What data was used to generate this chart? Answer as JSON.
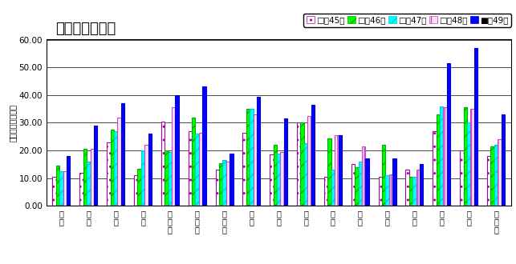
{
  "title": "インフルエンザ",
  "ylabel": "定点当たり報告数",
  "categories": [
    "野\n田",
    "柏\n市",
    "松\n戸",
    "市\n川",
    "船\n橋\n市",
    "習\n志\n野",
    "千\n葉\n市",
    "印\n旛",
    "香\n取",
    "海\n匹",
    "山\n武",
    "長\n生",
    "夷\n隣",
    "安\n房",
    "君\n津",
    "市\n原",
    "県\n全\n体"
  ],
  "ylim": [
    0,
    60
  ],
  "yticks": [
    0,
    10,
    20,
    30,
    40,
    50,
    60
  ],
  "ytick_labels": [
    "0.00",
    "10.00",
    "20.00",
    "30.00",
    "40.00",
    "50.00",
    "60.00"
  ],
  "series": {
    "第45週": [
      10.5,
      12.0,
      23.0,
      11.0,
      30.5,
      27.0,
      13.0,
      26.5,
      18.5,
      30.0,
      10.5,
      15.0,
      10.5,
      13.0,
      27.0,
      20.0,
      18.0
    ],
    "第46週": [
      14.5,
      20.5,
      27.5,
      13.5,
      20.0,
      32.0,
      15.5,
      35.0,
      22.0,
      30.0,
      24.5,
      14.0,
      22.0,
      10.5,
      33.0,
      35.5,
      21.5
    ],
    "第47週": [
      12.5,
      16.0,
      27.0,
      20.0,
      19.5,
      26.0,
      16.5,
      35.0,
      19.0,
      22.5,
      13.0,
      16.0,
      11.0,
      10.5,
      36.0,
      30.0,
      22.0
    ],
    "第48週": [
      12.5,
      20.5,
      32.0,
      22.0,
      35.5,
      26.5,
      16.0,
      33.0,
      19.5,
      32.5,
      25.5,
      21.5,
      11.5,
      13.0,
      35.5,
      35.0,
      24.0
    ],
    "第49週": [
      18.0,
      29.0,
      37.0,
      26.0,
      40.0,
      43.0,
      19.0,
      39.5,
      31.5,
      36.5,
      25.5,
      17.0,
      17.0,
      15.0,
      51.5,
      57.0,
      33.0
    ]
  },
  "colors": {
    "第45週": "#FFFFFF",
    "第46週": "#00FF00",
    "第47週": "#00FFFF",
    "第48週": "#FFFFFF",
    "第49週": "#0000FF"
  },
  "edge_colors": {
    "第45週": "#800080",
    "第46週": "#000000",
    "第47週": "#000000",
    "第48週": "#FF00FF",
    "第49週": "#0000CD"
  },
  "hatch_colors": {
    "第45週": "#FF69B4",
    "第46週": "#008000",
    "第47週": "#00AAAA",
    "第48週": "#FF69B4",
    "第49週": "#0000FF"
  },
  "hatches": {
    "第45週": "..",
    "第46週": "//",
    "第47週": "//",
    "第48週": "||",
    "第49週": ""
  },
  "legend_labels": [
    "第45週",
    "第46週",
    "第47週",
    "第48週",
    "第49週"
  ],
  "background_color": "#FFFFFF",
  "plot_bg_color": "#FFFFFF"
}
